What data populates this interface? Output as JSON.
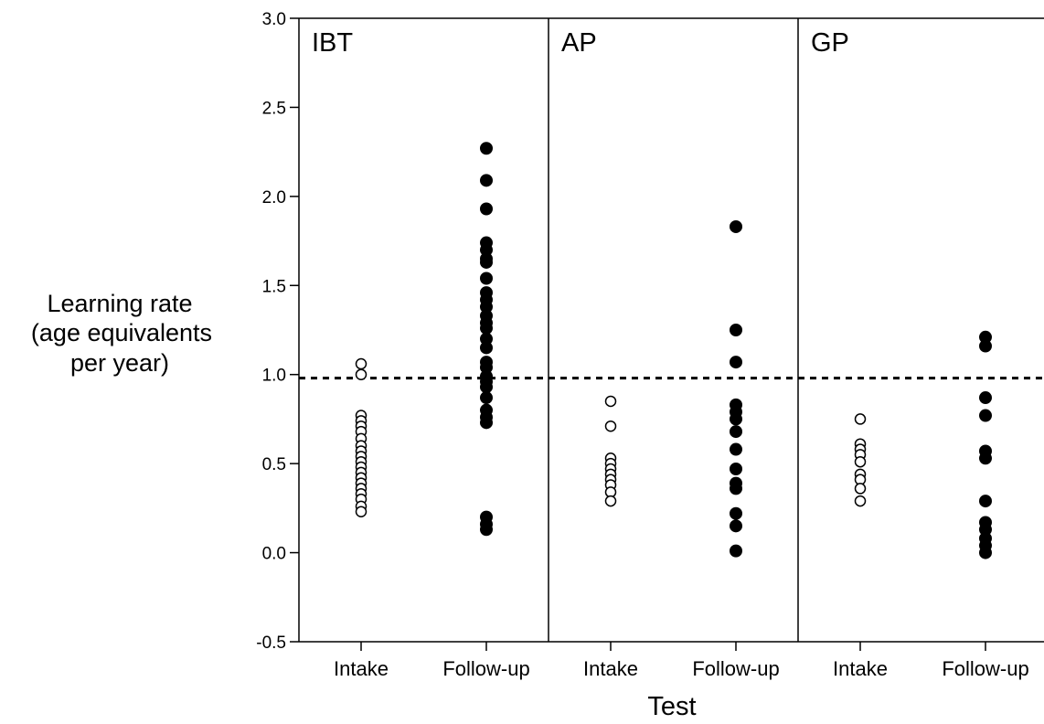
{
  "chart_data": {
    "type": "scatter",
    "ylabel": [
      "Learning rate",
      "(age equivalents",
      "per year)"
    ],
    "xlabel": "Test",
    "ylim": [
      -0.5,
      3.0
    ],
    "yticks": [
      "3.0",
      "2.5",
      "2.0",
      "1.5",
      "1.0",
      "0.5",
      "0.0",
      "-0.5"
    ],
    "reference_line": 0.98,
    "panels": [
      {
        "title": "IBT",
        "groups": [
          {
            "category": "Intake",
            "marker": "open",
            "values": [
              1.06,
              1.0,
              0.77,
              0.74,
              0.71,
              0.68,
              0.64,
              0.6,
              0.57,
              0.54,
              0.51,
              0.48,
              0.45,
              0.42,
              0.39,
              0.36,
              0.33,
              0.3,
              0.26,
              0.23
            ]
          },
          {
            "category": "Follow-up",
            "marker": "filled",
            "values": [
              2.27,
              2.09,
              1.93,
              1.74,
              1.7,
              1.65,
              1.63,
              1.54,
              1.46,
              1.42,
              1.38,
              1.33,
              1.29,
              1.26,
              1.2,
              1.15,
              1.07,
              1.04,
              0.99,
              0.96,
              0.93,
              0.87,
              0.8,
              0.76,
              0.73,
              0.2,
              0.16,
              0.13
            ]
          }
        ]
      },
      {
        "title": "AP",
        "groups": [
          {
            "category": "Intake",
            "marker": "open",
            "values": [
              0.85,
              0.71,
              0.53,
              0.5,
              0.47,
              0.44,
              0.41,
              0.38,
              0.34,
              0.29
            ]
          },
          {
            "category": "Follow-up",
            "marker": "filled",
            "values": [
              1.83,
              1.25,
              1.07,
              0.83,
              0.79,
              0.75,
              0.68,
              0.58,
              0.47,
              0.39,
              0.36,
              0.22,
              0.15,
              0.01
            ]
          }
        ]
      },
      {
        "title": "GP",
        "groups": [
          {
            "category": "Intake",
            "marker": "open",
            "values": [
              0.75,
              0.61,
              0.58,
              0.55,
              0.51,
              0.44,
              0.41,
              0.36,
              0.29
            ]
          },
          {
            "category": "Follow-up",
            "marker": "filled",
            "values": [
              1.21,
              1.16,
              0.87,
              0.77,
              0.57,
              0.53,
              0.29,
              0.17,
              0.13,
              0.08,
              0.04,
              0.0
            ]
          }
        ]
      }
    ]
  }
}
